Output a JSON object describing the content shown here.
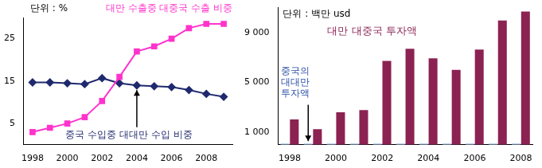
{
  "chart_data": [
    {
      "type": "line",
      "annotations": [
        "단위 : %"
      ],
      "categories": [
        "1998",
        null,
        "2000",
        null,
        "2002",
        null,
        "2004",
        null,
        "2006",
        null,
        "2008",
        null
      ],
      "series": [
        {
          "name": "대만 수출중 대중국 수출 비중",
          "color": "#ff33cc",
          "marker": "square",
          "values": [
            3,
            4,
            5,
            6.5,
            10.3,
            16,
            22,
            23.2,
            25,
            27.5,
            28.5,
            28.5
          ]
        },
        {
          "name": "중국 수입중 대대만 수입 비중",
          "color": "#1f2a6e",
          "marker": "diamond",
          "values": [
            14.7,
            14.7,
            14.5,
            14.3,
            15.7,
            14.5,
            14,
            13.8,
            13.6,
            12.9,
            12,
            11.3
          ]
        }
      ],
      "ylim": [
        0,
        30
      ],
      "yticks": [
        5,
        15,
        25
      ],
      "grid": false
    },
    {
      "type": "bar",
      "annotations": [
        "단위 : 백만 usd"
      ],
      "categories": [
        "1998",
        null,
        "2000",
        null,
        "2002",
        null,
        "2004",
        null,
        "2006",
        null,
        "2008"
      ],
      "series": [
        {
          "name": "중국의 대대만 투자액",
          "color": "#a9c4eb",
          "values": [
            100,
            100,
            100,
            100,
            100,
            100,
            100,
            100,
            100,
            100,
            100
          ]
        },
        {
          "name": "대만 대중국 투자액",
          "color": "#8b2252",
          "values": [
            2035,
            1253,
            2607,
            2784,
            6723,
            7699,
            6941,
            6007,
            7642,
            9971,
            10691
          ]
        }
      ],
      "ylim": [
        0,
        11000
      ],
      "yticks": [
        {
          "value": 1000,
          "label": "1 000"
        },
        {
          "value": 5000,
          "label": "5 000"
        },
        {
          "value": 9000,
          "label": "9 000"
        }
      ],
      "grid": false
    }
  ]
}
